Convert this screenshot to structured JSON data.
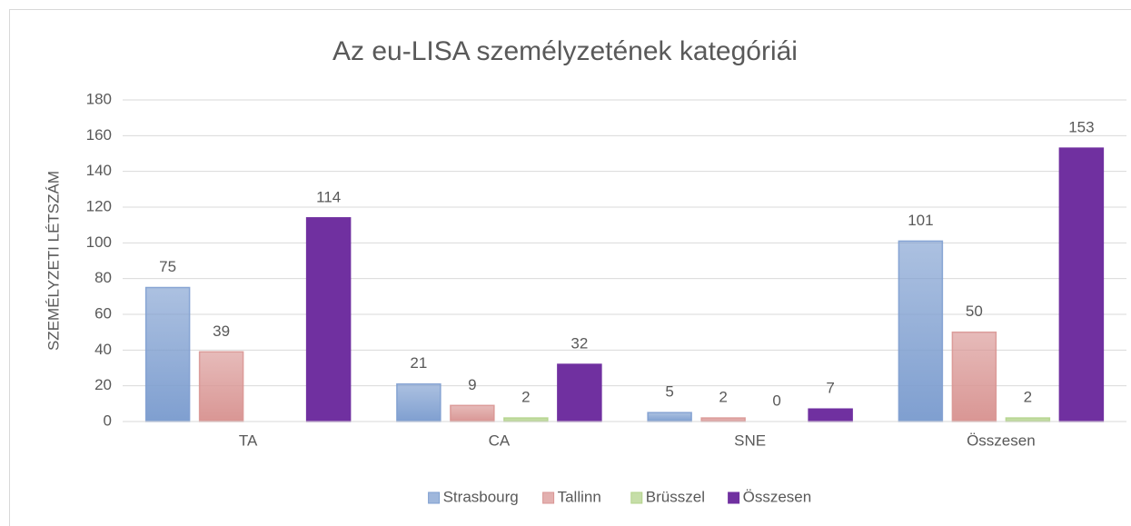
{
  "chart_data": {
    "type": "bar",
    "title": "Az eu-LISA személyzetének kategóriái",
    "y_label": "SZEMÉLYZETI LÉTSZÁM",
    "categories": [
      "TA",
      "CA",
      "SNE",
      "Összesen"
    ],
    "series": [
      {
        "name": "Strasbourg",
        "color": "#7f9fd0",
        "values": [
          75,
          21,
          5,
          101
        ]
      },
      {
        "name": "Tallinn",
        "color": "#d99694",
        "values": [
          39,
          9,
          2,
          50
        ]
      },
      {
        "name": "Brüsszel",
        "color": "#b3d38b",
        "values": [
          null,
          2,
          0,
          2
        ]
      },
      {
        "name": "Összesen",
        "color": "#7030a0",
        "values": [
          114,
          32,
          7,
          153
        ]
      }
    ],
    "ylim": [
      0,
      180
    ],
    "yticks": [
      0,
      20,
      40,
      60,
      80,
      100,
      120,
      140,
      160,
      180
    ],
    "grid": true,
    "legend": "bottom"
  }
}
